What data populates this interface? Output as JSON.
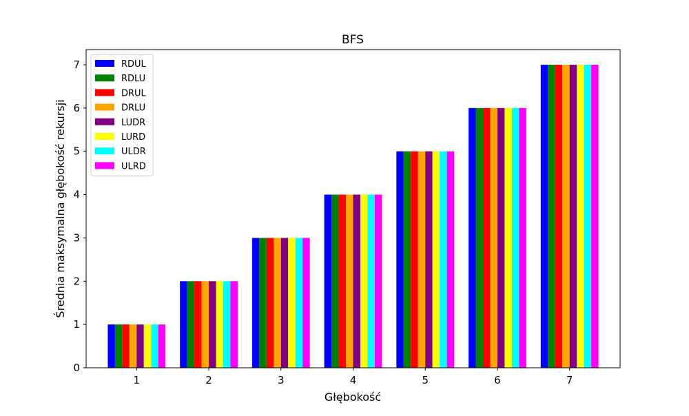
{
  "chart_data": {
    "type": "bar",
    "title": "BFS",
    "xlabel": "Głębokość",
    "ylabel": "Średnia maksymalna głębokość rekursji",
    "categories": [
      "1",
      "2",
      "3",
      "4",
      "5",
      "6",
      "7"
    ],
    "ylim": [
      0,
      7.35
    ],
    "yticks": [
      "0",
      "1",
      "2",
      "3",
      "4",
      "5",
      "6",
      "7"
    ],
    "grid": false,
    "legend_position": "top-left",
    "series": [
      {
        "name": "RDUL",
        "color": "#0000ff",
        "values": [
          1,
          2,
          3,
          4,
          5,
          6,
          7
        ]
      },
      {
        "name": "RDLU",
        "color": "#008000",
        "values": [
          1,
          2,
          3,
          4,
          5,
          6,
          7
        ]
      },
      {
        "name": "DRUL",
        "color": "#ff0000",
        "values": [
          1,
          2,
          3,
          4,
          5,
          6,
          7
        ]
      },
      {
        "name": "DRLU",
        "color": "#ffa500",
        "values": [
          1,
          2,
          3,
          4,
          5,
          6,
          7
        ]
      },
      {
        "name": "LUDR",
        "color": "#800080",
        "values": [
          1,
          2,
          3,
          4,
          5,
          6,
          7
        ]
      },
      {
        "name": "LURD",
        "color": "#ffff00",
        "values": [
          1,
          2,
          3,
          4,
          5,
          6,
          7
        ]
      },
      {
        "name": "ULDR",
        "color": "#00ffff",
        "values": [
          1,
          2,
          3,
          4,
          5,
          6,
          7
        ]
      },
      {
        "name": "ULRD",
        "color": "#ff00ff",
        "values": [
          1,
          2,
          3,
          4,
          5,
          6,
          7
        ]
      }
    ]
  }
}
